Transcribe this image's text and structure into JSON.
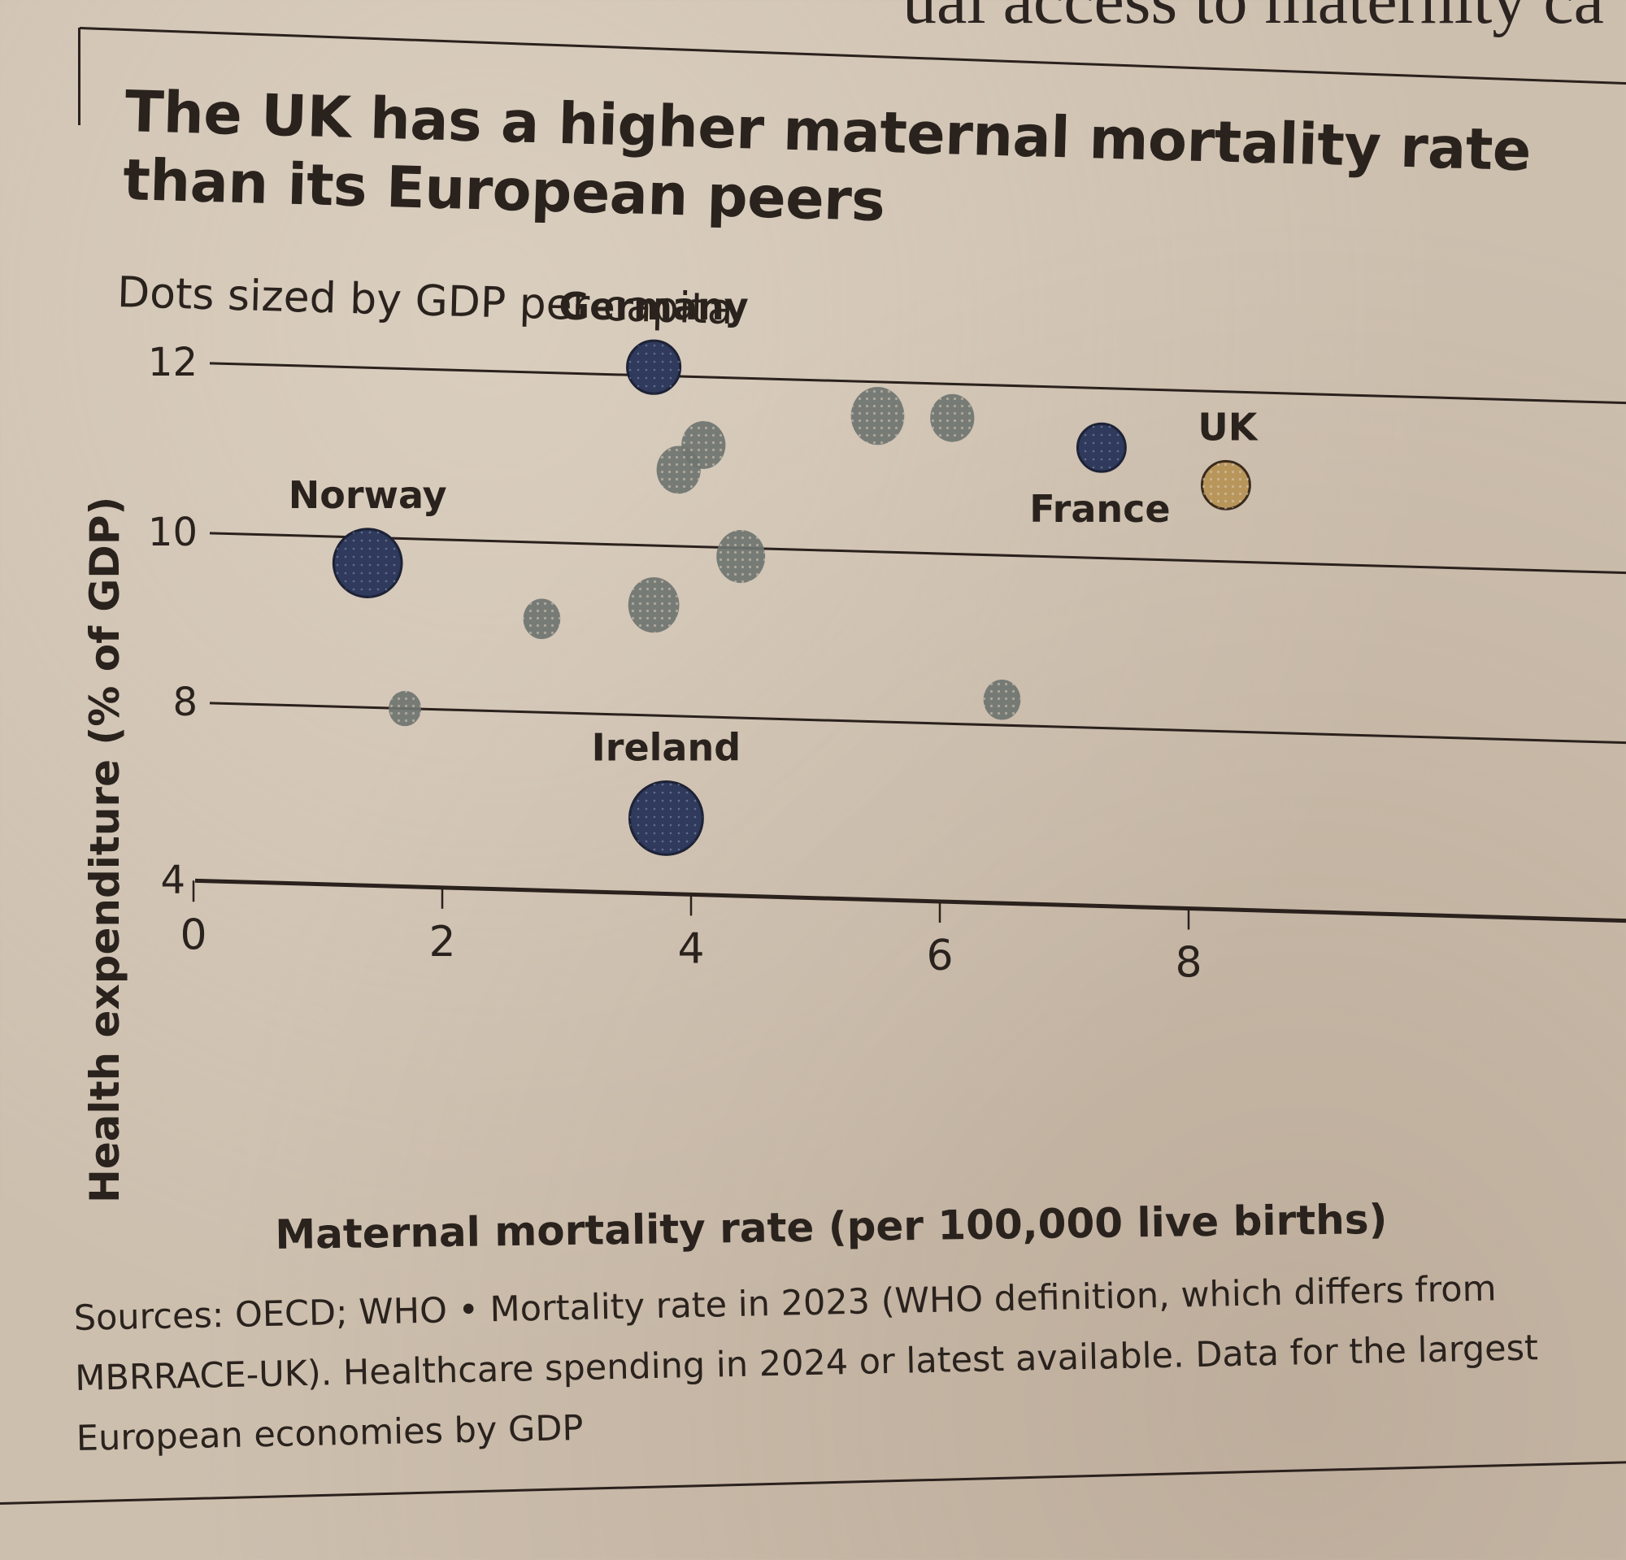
{
  "page": {
    "cutoff_text": "ual access to maternity ca"
  },
  "chart_data": {
    "type": "scatter",
    "title": "The UK has a higher maternal mortality rate than its European peers",
    "subtitle": "Dots sized by GDP per capita",
    "xlabel": "Maternal mortality rate (per 100,000 live births)",
    "ylabel": "Health expenditure (% of GDP)",
    "xlim": [
      0,
      9
    ],
    "ylim": [
      4,
      12.5
    ],
    "x_ticks": [
      "0",
      "2",
      "4",
      "6",
      "8"
    ],
    "y_ticks": [
      "4",
      "8",
      "10",
      "12"
    ],
    "y_axis_note": "axis broken between 4 and 8",
    "grid": "horizontal",
    "size_encoding": "GDP per capita",
    "colors": {
      "highlight": "#2f3a5c",
      "uk": "#b8955a",
      "other": "#6f7470"
    },
    "points": [
      {
        "label": "Germany",
        "x": 3.7,
        "y": 12.1,
        "size": 1.05,
        "group": "highlight"
      },
      {
        "label": "France",
        "x": 7.3,
        "y": 11.3,
        "size": 0.95,
        "group": "highlight"
      },
      {
        "label": "UK",
        "x": 8.3,
        "y": 10.9,
        "size": 0.95,
        "group": "uk"
      },
      {
        "label": "Norway",
        "x": 1.4,
        "y": 9.7,
        "size": 1.35,
        "group": "highlight"
      },
      {
        "label": "Ireland",
        "x": 3.8,
        "y": 5.7,
        "size": 1.45,
        "group": "highlight"
      },
      {
        "label": "",
        "x": 5.5,
        "y": 11.6,
        "size": 1.15,
        "group": "other"
      },
      {
        "label": "",
        "x": 6.1,
        "y": 11.6,
        "size": 0.95,
        "group": "other"
      },
      {
        "label": "",
        "x": 4.1,
        "y": 11.2,
        "size": 0.95,
        "group": "other"
      },
      {
        "label": "",
        "x": 3.9,
        "y": 10.9,
        "size": 0.95,
        "group": "other"
      },
      {
        "label": "",
        "x": 4.4,
        "y": 9.9,
        "size": 1.05,
        "group": "other"
      },
      {
        "label": "",
        "x": 3.7,
        "y": 9.3,
        "size": 1.1,
        "group": "other"
      },
      {
        "label": "",
        "x": 2.8,
        "y": 9.1,
        "size": 0.8,
        "group": "other"
      },
      {
        "label": "",
        "x": 6.5,
        "y": 8.3,
        "size": 0.8,
        "group": "other"
      },
      {
        "label": "",
        "x": 1.7,
        "y": 8.0,
        "size": 0.7,
        "group": "other"
      }
    ],
    "annotations": [
      {
        "text": "Germany",
        "anchor": "above"
      },
      {
        "text": "France",
        "anchor": "below"
      },
      {
        "text": "UK",
        "anchor": "above"
      },
      {
        "text": "Norway",
        "anchor": "above"
      },
      {
        "text": "Ireland",
        "anchor": "above"
      }
    ],
    "footnote": "Sources: OECD; WHO • Mortality rate in 2023 (WHO definition, which differs from MBRRACE-UK). Healthcare spending in 2024 or latest available. Data for the largest European economies by GDP"
  }
}
